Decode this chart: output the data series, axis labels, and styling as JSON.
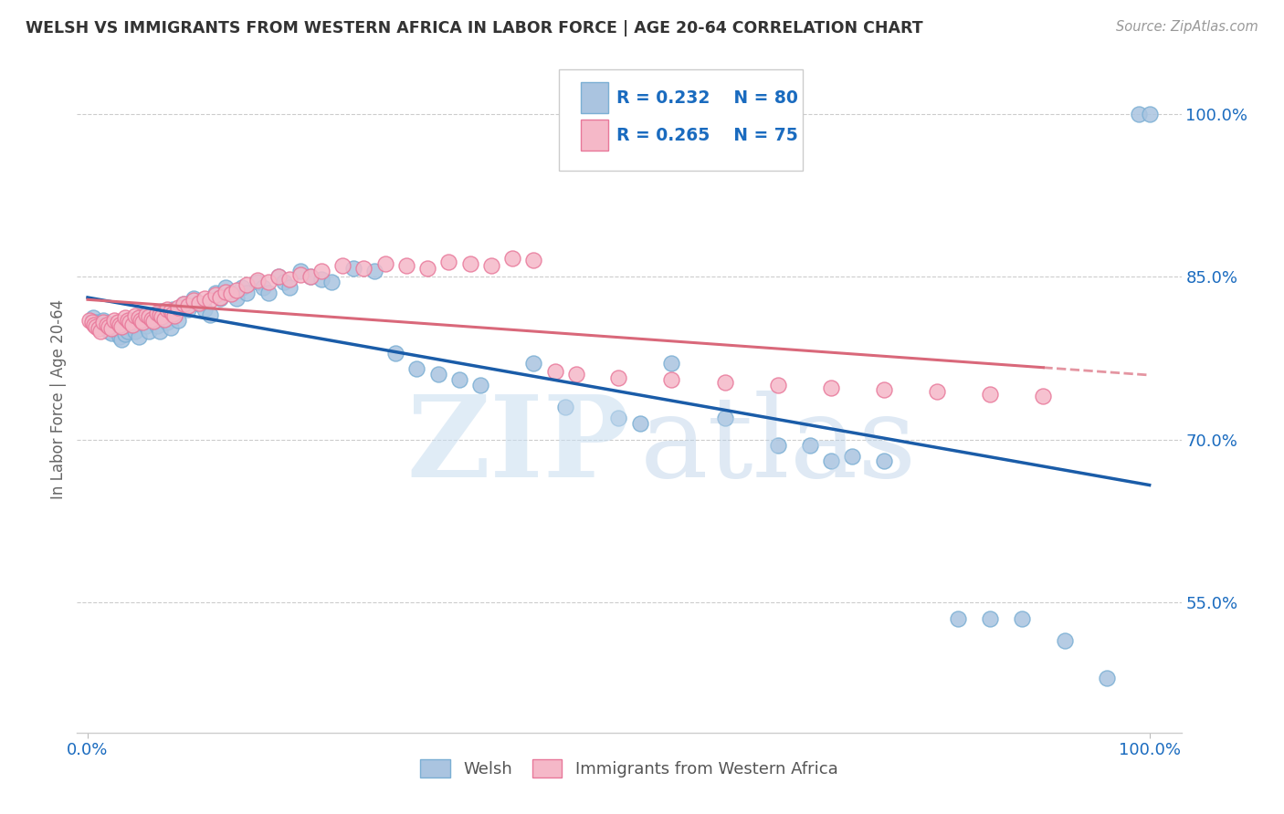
{
  "title": "WELSH VS IMMIGRANTS FROM WESTERN AFRICA IN LABOR FORCE | AGE 20-64 CORRELATION CHART",
  "source": "Source: ZipAtlas.com",
  "ylabel": "In Labor Force | Age 20-64",
  "xlim": [
    -0.01,
    1.03
  ],
  "ylim": [
    0.43,
    1.045
  ],
  "ytick_vals": [
    0.55,
    0.7,
    0.85,
    1.0
  ],
  "welsh_color": "#aac4e0",
  "welsh_edge_color": "#7bafd4",
  "pink_color": "#f5b8c8",
  "pink_edge_color": "#e8789a",
  "blue_line_color": "#1a5ca8",
  "pink_line_color": "#d9687a",
  "legend_text_color": "#1a6bbf",
  "R_welsh": 0.232,
  "N_welsh": 80,
  "R_pink": 0.265,
  "N_pink": 75,
  "background_color": "#ffffff",
  "grid_color": "#cccccc",
  "welsh_x": [
    0.005,
    0.008,
    0.012,
    0.015,
    0.018,
    0.02,
    0.022,
    0.025,
    0.028,
    0.03,
    0.032,
    0.035,
    0.038,
    0.04,
    0.042,
    0.045,
    0.048,
    0.05,
    0.052,
    0.055,
    0.058,
    0.06,
    0.062,
    0.065,
    0.068,
    0.07,
    0.072,
    0.075,
    0.078,
    0.08,
    0.082,
    0.085,
    0.09,
    0.095,
    0.1,
    0.105,
    0.11,
    0.115,
    0.12,
    0.125,
    0.13,
    0.135,
    0.14,
    0.145,
    0.15,
    0.16,
    0.165,
    0.17,
    0.18,
    0.185,
    0.19,
    0.2,
    0.21,
    0.22,
    0.23,
    0.25,
    0.27,
    0.29,
    0.31,
    0.33,
    0.35,
    0.37,
    0.42,
    0.45,
    0.5,
    0.52,
    0.55,
    0.6,
    0.65,
    0.68,
    0.7,
    0.72,
    0.75,
    0.82,
    0.85,
    0.88,
    0.92,
    0.96,
    0.99,
    1.0
  ],
  "welsh_y": [
    0.812,
    0.808,
    0.805,
    0.81,
    0.807,
    0.8,
    0.798,
    0.803,
    0.806,
    0.795,
    0.792,
    0.797,
    0.8,
    0.81,
    0.805,
    0.8,
    0.795,
    0.813,
    0.808,
    0.805,
    0.8,
    0.815,
    0.81,
    0.805,
    0.8,
    0.818,
    0.813,
    0.808,
    0.803,
    0.82,
    0.815,
    0.81,
    0.825,
    0.82,
    0.83,
    0.825,
    0.82,
    0.815,
    0.835,
    0.83,
    0.84,
    0.835,
    0.83,
    0.84,
    0.835,
    0.845,
    0.84,
    0.835,
    0.85,
    0.845,
    0.84,
    0.855,
    0.85,
    0.848,
    0.845,
    0.858,
    0.855,
    0.78,
    0.765,
    0.76,
    0.755,
    0.75,
    0.77,
    0.73,
    0.72,
    0.715,
    0.77,
    0.72,
    0.695,
    0.695,
    0.68,
    0.685,
    0.68,
    0.535,
    0.535,
    0.535,
    0.515,
    0.48,
    1.0,
    1.0
  ],
  "pink_x": [
    0.002,
    0.004,
    0.006,
    0.008,
    0.01,
    0.012,
    0.015,
    0.018,
    0.02,
    0.022,
    0.025,
    0.028,
    0.03,
    0.032,
    0.035,
    0.038,
    0.04,
    0.042,
    0.045,
    0.048,
    0.05,
    0.052,
    0.055,
    0.058,
    0.06,
    0.062,
    0.065,
    0.068,
    0.07,
    0.072,
    0.075,
    0.078,
    0.08,
    0.082,
    0.085,
    0.09,
    0.095,
    0.1,
    0.105,
    0.11,
    0.115,
    0.12,
    0.125,
    0.13,
    0.135,
    0.14,
    0.15,
    0.16,
    0.17,
    0.18,
    0.19,
    0.2,
    0.21,
    0.22,
    0.24,
    0.26,
    0.28,
    0.3,
    0.32,
    0.34,
    0.36,
    0.38,
    0.4,
    0.42,
    0.44,
    0.46,
    0.5,
    0.55,
    0.6,
    0.65,
    0.7,
    0.75,
    0.8,
    0.85,
    0.9
  ],
  "pink_y": [
    0.81,
    0.808,
    0.806,
    0.804,
    0.802,
    0.8,
    0.808,
    0.806,
    0.804,
    0.802,
    0.81,
    0.808,
    0.806,
    0.804,
    0.812,
    0.81,
    0.808,
    0.806,
    0.814,
    0.812,
    0.81,
    0.808,
    0.815,
    0.813,
    0.811,
    0.809,
    0.817,
    0.815,
    0.813,
    0.811,
    0.82,
    0.818,
    0.816,
    0.814,
    0.822,
    0.825,
    0.823,
    0.828,
    0.826,
    0.83,
    0.828,
    0.833,
    0.831,
    0.836,
    0.834,
    0.838,
    0.843,
    0.847,
    0.845,
    0.85,
    0.848,
    0.852,
    0.85,
    0.855,
    0.86,
    0.858,
    0.862,
    0.86,
    0.858,
    0.864,
    0.862,
    0.86,
    0.867,
    0.865,
    0.763,
    0.76,
    0.757,
    0.755,
    0.753,
    0.75,
    0.748,
    0.746,
    0.744,
    0.742,
    0.74
  ]
}
